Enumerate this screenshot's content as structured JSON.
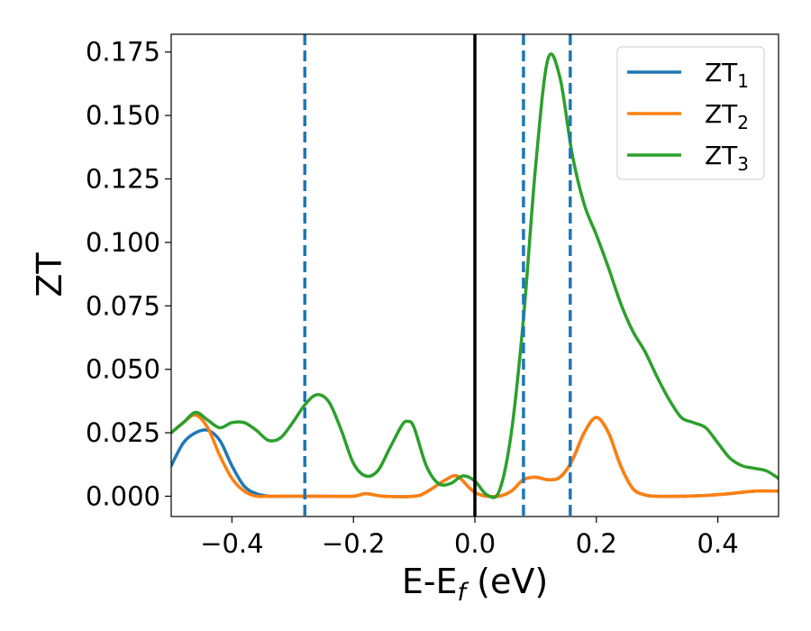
{
  "chart_data": {
    "type": "line",
    "title": "",
    "xlabel": {
      "main": "E-E",
      "sub": "f",
      "suffix": " (eV)"
    },
    "ylabel": "ZT",
    "xlim": [
      -0.5,
      0.5
    ],
    "ylim": [
      -0.008,
      0.182
    ],
    "x_ticks": [
      -0.4,
      -0.2,
      0.0,
      0.2,
      0.4
    ],
    "x_tick_labels": [
      "−0.4",
      "−0.2",
      "0.0",
      "0.2",
      "0.4"
    ],
    "y_ticks": [
      0.0,
      0.025,
      0.05,
      0.075,
      0.1,
      0.125,
      0.15,
      0.175
    ],
    "y_tick_labels": [
      "0.000",
      "0.025",
      "0.050",
      "0.075",
      "0.100",
      "0.125",
      "0.150",
      "0.175"
    ],
    "grid": false,
    "legend_position": "top-right",
    "series": [
      {
        "name": "ZT",
        "sub": "1",
        "color": "#1f77b4",
        "x": [
          -0.5,
          -0.48,
          -0.46,
          -0.44,
          -0.42,
          -0.4,
          -0.38,
          -0.36,
          -0.34,
          -0.32,
          -0.3,
          -0.25,
          -0.2,
          -0.18,
          -0.15,
          -0.1,
          -0.08,
          -0.05,
          -0.03,
          -0.01,
          0.0,
          0.01,
          0.02,
          0.04,
          0.06,
          0.08,
          0.1,
          0.12,
          0.14,
          0.16,
          0.18,
          0.2,
          0.22,
          0.24,
          0.26,
          0.28,
          0.3,
          0.34,
          0.38,
          0.42,
          0.46,
          0.5
        ],
        "y": [
          0.012,
          0.021,
          0.025,
          0.026,
          0.022,
          0.012,
          0.004,
          0.001,
          0.0,
          0.0,
          0.0,
          0.0,
          0.0,
          0.001,
          0.0,
          0.0,
          0.0016,
          0.0062,
          0.008,
          0.0035,
          0.0015,
          0.0005,
          0.0,
          0.0,
          0.002,
          0.0065,
          0.0075,
          0.0065,
          0.0075,
          0.014,
          0.025,
          0.031,
          0.025,
          0.012,
          0.003,
          0.0005,
          0.0,
          0.0,
          0.0003,
          0.001,
          0.002,
          0.002
        ]
      },
      {
        "name": "ZT",
        "sub": "2",
        "color": "#ff7f0e",
        "x": [
          -0.5,
          -0.48,
          -0.46,
          -0.44,
          -0.42,
          -0.4,
          -0.38,
          -0.36,
          -0.34,
          -0.32,
          -0.3,
          -0.25,
          -0.2,
          -0.18,
          -0.15,
          -0.1,
          -0.08,
          -0.05,
          -0.03,
          -0.01,
          0.0,
          0.01,
          0.02,
          0.04,
          0.06,
          0.08,
          0.1,
          0.12,
          0.14,
          0.16,
          0.18,
          0.2,
          0.22,
          0.24,
          0.26,
          0.28,
          0.3,
          0.34,
          0.38,
          0.42,
          0.46,
          0.5
        ],
        "y": [
          0.025,
          0.029,
          0.032,
          0.027,
          0.016,
          0.007,
          0.002,
          0.0,
          0.0,
          0.0,
          0.0,
          0.0,
          0.0,
          0.001,
          0.0,
          0.0,
          0.0016,
          0.0062,
          0.008,
          0.0035,
          0.0015,
          0.0005,
          0.0,
          0.0,
          0.002,
          0.0065,
          0.0075,
          0.0065,
          0.0075,
          0.014,
          0.025,
          0.031,
          0.025,
          0.012,
          0.003,
          0.0005,
          0.0,
          0.0,
          0.0003,
          0.001,
          0.002,
          0.002
        ]
      },
      {
        "name": "ZT",
        "sub": "3",
        "color": "#2ca02c",
        "x": [
          -0.5,
          -0.48,
          -0.46,
          -0.44,
          -0.42,
          -0.4,
          -0.38,
          -0.36,
          -0.34,
          -0.32,
          -0.3,
          -0.28,
          -0.26,
          -0.24,
          -0.22,
          -0.2,
          -0.18,
          -0.16,
          -0.14,
          -0.12,
          -0.11,
          -0.1,
          -0.08,
          -0.06,
          -0.04,
          -0.02,
          0.0,
          0.02,
          0.04,
          0.06,
          0.08,
          0.1,
          0.12,
          0.14,
          0.16,
          0.18,
          0.2,
          0.22,
          0.24,
          0.26,
          0.28,
          0.3,
          0.32,
          0.34,
          0.36,
          0.38,
          0.4,
          0.42,
          0.44,
          0.46,
          0.48,
          0.5
        ],
        "y": [
          0.025,
          0.029,
          0.033,
          0.03,
          0.027,
          0.029,
          0.029,
          0.026,
          0.022,
          0.023,
          0.029,
          0.036,
          0.04,
          0.037,
          0.026,
          0.013,
          0.008,
          0.01,
          0.019,
          0.028,
          0.0295,
          0.027,
          0.012,
          0.005,
          0.005,
          0.008,
          0.006,
          0.0005,
          0.002,
          0.025,
          0.07,
          0.13,
          0.172,
          0.165,
          0.135,
          0.115,
          0.103,
          0.09,
          0.076,
          0.065,
          0.057,
          0.047,
          0.038,
          0.031,
          0.029,
          0.027,
          0.021,
          0.015,
          0.012,
          0.011,
          0.01,
          0.007
        ]
      }
    ],
    "vertical_lines": [
      {
        "x": -0.28,
        "style": "dashed",
        "color": "#1f77b4"
      },
      {
        "x": 0.0,
        "style": "solid",
        "color": "#000000"
      },
      {
        "x": 0.08,
        "style": "dashed",
        "color": "#1f77b4"
      },
      {
        "x": 0.157,
        "style": "dashed",
        "color": "#1f77b4"
      }
    ]
  }
}
